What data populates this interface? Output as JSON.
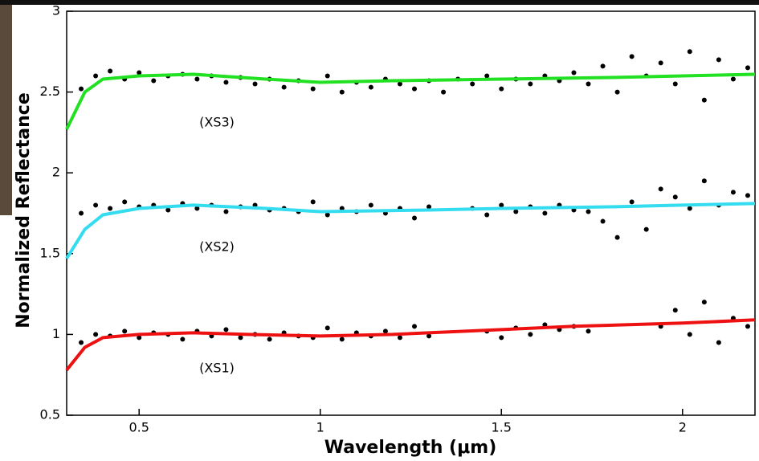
{
  "chart_data": {
    "type": "line",
    "x_label": "Wavelength (μm)",
    "y_label": "Normalized Reflectance",
    "xlim": [
      0.3,
      2.2
    ],
    "ylim": [
      0.5,
      3
    ],
    "xticks": [
      0.5,
      1,
      1.5,
      2
    ],
    "yticks": [
      0.5,
      1,
      1.5,
      2,
      2.5,
      3
    ],
    "annotations": [
      "(XS3)",
      "(XS2)",
      "(XS1)"
    ],
    "series": [
      {
        "type": "scatter",
        "color": "#000000",
        "x": [
          0.34,
          0.38,
          0.42,
          0.46,
          0.5,
          0.54,
          0.58,
          0.62,
          0.66,
          0.7,
          0.74,
          0.78,
          0.82,
          0.86,
          0.9,
          0.94,
          0.98,
          1.02,
          1.06,
          1.1,
          1.14,
          1.18,
          1.22,
          1.26,
          1.3,
          1.34,
          1.38,
          1.42,
          1.46,
          1.5,
          1.54,
          1.58,
          1.62,
          1.66,
          1.7,
          1.74,
          1.78,
          1.82,
          1.86,
          1.9,
          1.94,
          1.98,
          2.02,
          2.06,
          2.1,
          2.14,
          2.18
        ],
        "values": [
          2.52,
          2.6,
          2.63,
          2.58,
          2.62,
          2.57,
          2.6,
          2.61,
          2.58,
          2.6,
          2.56,
          2.59,
          2.55,
          2.58,
          2.53,
          2.57,
          2.52,
          2.6,
          2.5,
          2.56,
          2.53,
          2.58,
          2.55,
          2.52,
          2.57,
          2.5,
          2.58,
          2.55,
          2.6,
          2.52,
          2.58,
          2.55,
          2.6,
          2.57,
          2.62,
          2.55,
          2.66,
          2.5,
          2.72,
          2.6,
          2.68,
          2.55,
          2.75,
          2.45,
          2.7,
          2.58,
          2.65
        ]
      },
      {
        "type": "scatter",
        "color": "#000000",
        "x": [
          0.34,
          0.38,
          0.42,
          0.46,
          0.5,
          0.54,
          0.58,
          0.62,
          0.66,
          0.7,
          0.74,
          0.78,
          0.82,
          0.86,
          0.9,
          0.94,
          0.98,
          1.02,
          1.06,
          1.1,
          1.14,
          1.18,
          1.22,
          1.26,
          1.3,
          1.34,
          1.38,
          1.42,
          1.46,
          1.5,
          1.54,
          1.58,
          1.62,
          1.66,
          1.7,
          1.74,
          1.78,
          1.82,
          1.86,
          1.9,
          1.94,
          1.98,
          2.02,
          2.06,
          2.1,
          2.14,
          2.18
        ],
        "values": [
          1.75,
          1.8,
          1.78,
          1.82,
          1.79,
          1.8,
          1.77,
          1.81,
          1.78,
          1.8,
          1.76,
          1.79,
          1.8,
          1.77,
          1.78,
          1.76,
          1.82,
          1.74,
          1.78,
          1.76,
          1.8,
          1.75,
          1.78,
          1.72,
          1.79,
          null,
          null,
          1.78,
          1.74,
          1.8,
          1.76,
          1.79,
          1.75,
          1.8,
          1.77,
          1.76,
          1.7,
          1.6,
          1.82,
          1.65,
          1.9,
          1.85,
          1.78,
          1.95,
          1.8,
          1.88,
          1.86
        ]
      },
      {
        "type": "scatter",
        "color": "#000000",
        "x": [
          0.34,
          0.38,
          0.42,
          0.46,
          0.5,
          0.54,
          0.58,
          0.62,
          0.66,
          0.7,
          0.74,
          0.78,
          0.82,
          0.86,
          0.9,
          0.94,
          0.98,
          1.02,
          1.06,
          1.1,
          1.14,
          1.18,
          1.22,
          1.26,
          1.3,
          1.34,
          1.38,
          1.42,
          1.46,
          1.5,
          1.54,
          1.58,
          1.62,
          1.66,
          1.7,
          1.74,
          1.78,
          1.82,
          1.86,
          1.9,
          1.94,
          1.98,
          2.02,
          2.06,
          2.1,
          2.14,
          2.18
        ],
        "values": [
          0.95,
          1.0,
          0.99,
          1.02,
          0.98,
          1.01,
          1.0,
          0.97,
          1.02,
          0.99,
          1.03,
          0.98,
          1.0,
          0.97,
          1.01,
          0.99,
          0.98,
          1.04,
          0.97,
          1.01,
          0.99,
          1.02,
          0.98,
          1.05,
          0.99,
          null,
          null,
          null,
          1.02,
          0.98,
          1.04,
          1.0,
          1.06,
          1.03,
          1.05,
          1.02,
          null,
          null,
          null,
          null,
          1.05,
          1.15,
          1.0,
          1.2,
          0.95,
          1.1,
          1.05
        ]
      },
      {
        "type": "line",
        "color": "#22e022",
        "x": [
          0.3,
          0.35,
          0.4,
          0.5,
          0.65,
          0.85,
          1.0,
          1.2,
          1.5,
          1.8,
          2.0,
          2.2
        ],
        "values": [
          2.27,
          2.5,
          2.58,
          2.6,
          2.61,
          2.58,
          2.56,
          2.57,
          2.58,
          2.59,
          2.6,
          2.61
        ]
      },
      {
        "type": "line",
        "color": "#33dcee",
        "x": [
          0.3,
          0.35,
          0.4,
          0.5,
          0.65,
          0.85,
          1.0,
          1.3,
          1.5,
          1.8,
          2.0,
          2.2
        ],
        "values": [
          1.47,
          1.65,
          1.74,
          1.78,
          1.8,
          1.78,
          1.76,
          1.77,
          1.78,
          1.79,
          1.8,
          1.81
        ]
      },
      {
        "type": "line",
        "color": "#ee1111",
        "x": [
          0.3,
          0.35,
          0.4,
          0.5,
          0.65,
          0.8,
          1.0,
          1.2,
          1.5,
          1.7,
          2.0,
          2.2
        ],
        "values": [
          0.78,
          0.92,
          0.98,
          1.0,
          1.01,
          1.0,
          0.99,
          1.0,
          1.03,
          1.05,
          1.07,
          1.09
        ]
      }
    ]
  }
}
